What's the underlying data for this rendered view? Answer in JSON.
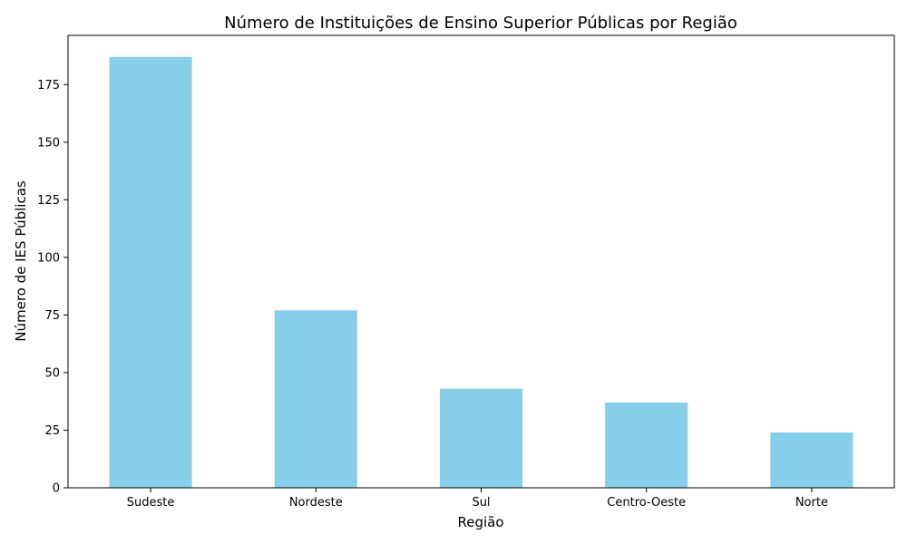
{
  "chart_data": {
    "type": "bar",
    "title": "Número de Instituições de Ensino Superior Públicas por Região",
    "xlabel": "Região",
    "ylabel": "Número de IES Públicas",
    "categories": [
      "Sudeste",
      "Nordeste",
      "Sul",
      "Centro-Oeste",
      "Norte"
    ],
    "values": [
      187,
      77,
      43,
      37,
      24
    ],
    "ylim": [
      0,
      196.35
    ],
    "yticks": [
      0,
      25,
      50,
      75,
      100,
      125,
      150,
      175
    ],
    "ytick_labels": [
      "0",
      "25",
      "50",
      "75",
      "100",
      "125",
      "150",
      "175"
    ],
    "bar_color": "#87ceeb",
    "grid": false,
    "legend": "none"
  }
}
